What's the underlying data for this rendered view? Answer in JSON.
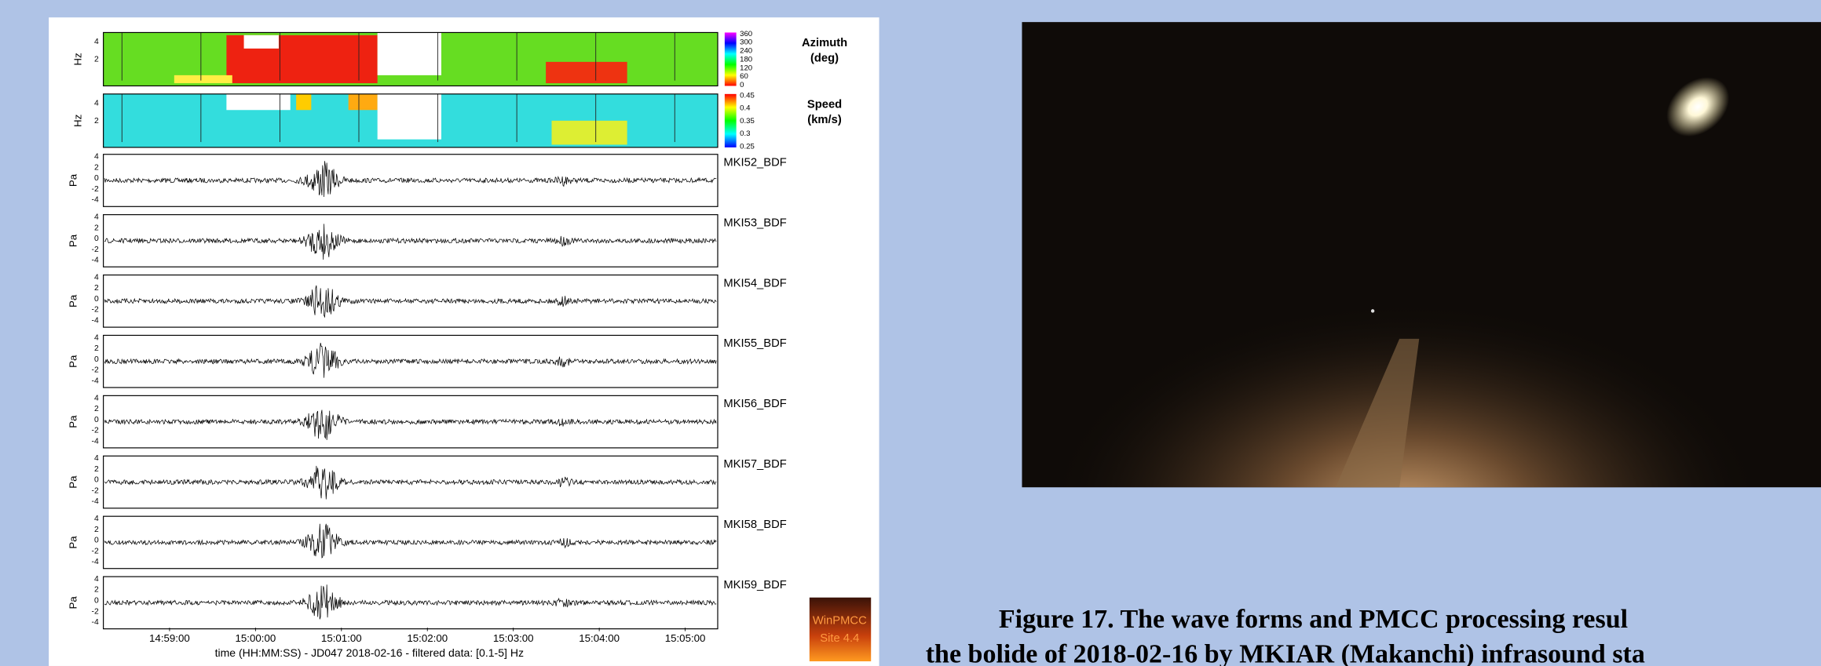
{
  "figure": {
    "spectrogram_panels": [
      {
        "label": "Azimuth",
        "unit": "(deg)",
        "ylabel": "Hz",
        "yticks": [
          "4",
          "2"
        ],
        "colorbar_ticks": [
          "360",
          "300",
          "240",
          "180",
          "120",
          "60",
          "0"
        ]
      },
      {
        "label": "Speed",
        "unit": "(km/s)",
        "ylabel": "Hz",
        "yticks": [
          "4",
          "2"
        ],
        "colorbar_ticks": [
          "0.45",
          "0.4",
          "0.35",
          "0.3",
          "0.25"
        ]
      }
    ],
    "waveform_panels": [
      {
        "station": "MKI52_BDF",
        "ylabel": "Pa",
        "yticks": [
          "4",
          "2",
          "0",
          "-2",
          "-4"
        ]
      },
      {
        "station": "MKI53_BDF",
        "ylabel": "Pa",
        "yticks": [
          "4",
          "2",
          "0",
          "-2",
          "-4"
        ]
      },
      {
        "station": "MKI54_BDF",
        "ylabel": "Pa",
        "yticks": [
          "4",
          "2",
          "0",
          "-2",
          "-4"
        ]
      },
      {
        "station": "MKI55_BDF",
        "ylabel": "Pa",
        "yticks": [
          "4",
          "2",
          "0",
          "-2",
          "-4"
        ]
      },
      {
        "station": "MKI56_BDF",
        "ylabel": "Pa",
        "yticks": [
          "4",
          "2",
          "0",
          "-2",
          "-4"
        ]
      },
      {
        "station": "MKI57_BDF",
        "ylabel": "Pa",
        "yticks": [
          "4",
          "2",
          "0",
          "-2",
          "-4"
        ]
      },
      {
        "station": "MKI58_BDF",
        "ylabel": "Pa",
        "yticks": [
          "4",
          "2",
          "0",
          "-2",
          "-4"
        ]
      },
      {
        "station": "MKI59_BDF",
        "ylabel": "Pa",
        "yticks": [
          "4",
          "2",
          "0",
          "-2",
          "-4"
        ]
      }
    ],
    "time_ticks": [
      "14:59:00",
      "15:00:00",
      "15:01:00",
      "15:02:00",
      "15:03:00",
      "15:04:00",
      "15:05:00"
    ],
    "xlabel": "time (HH:MM:SS) - JD047 2018-02-16 - filtered data: [0.1-5] Hz",
    "logo": [
      "WinPMCC",
      "Site 4.4"
    ]
  },
  "caption": [
    "Figure 17. The wave forms and PMCC processing resul",
    "the bolide of 2018-02-16 by MKIAR (Makanchi) infrasound sta"
  ]
}
